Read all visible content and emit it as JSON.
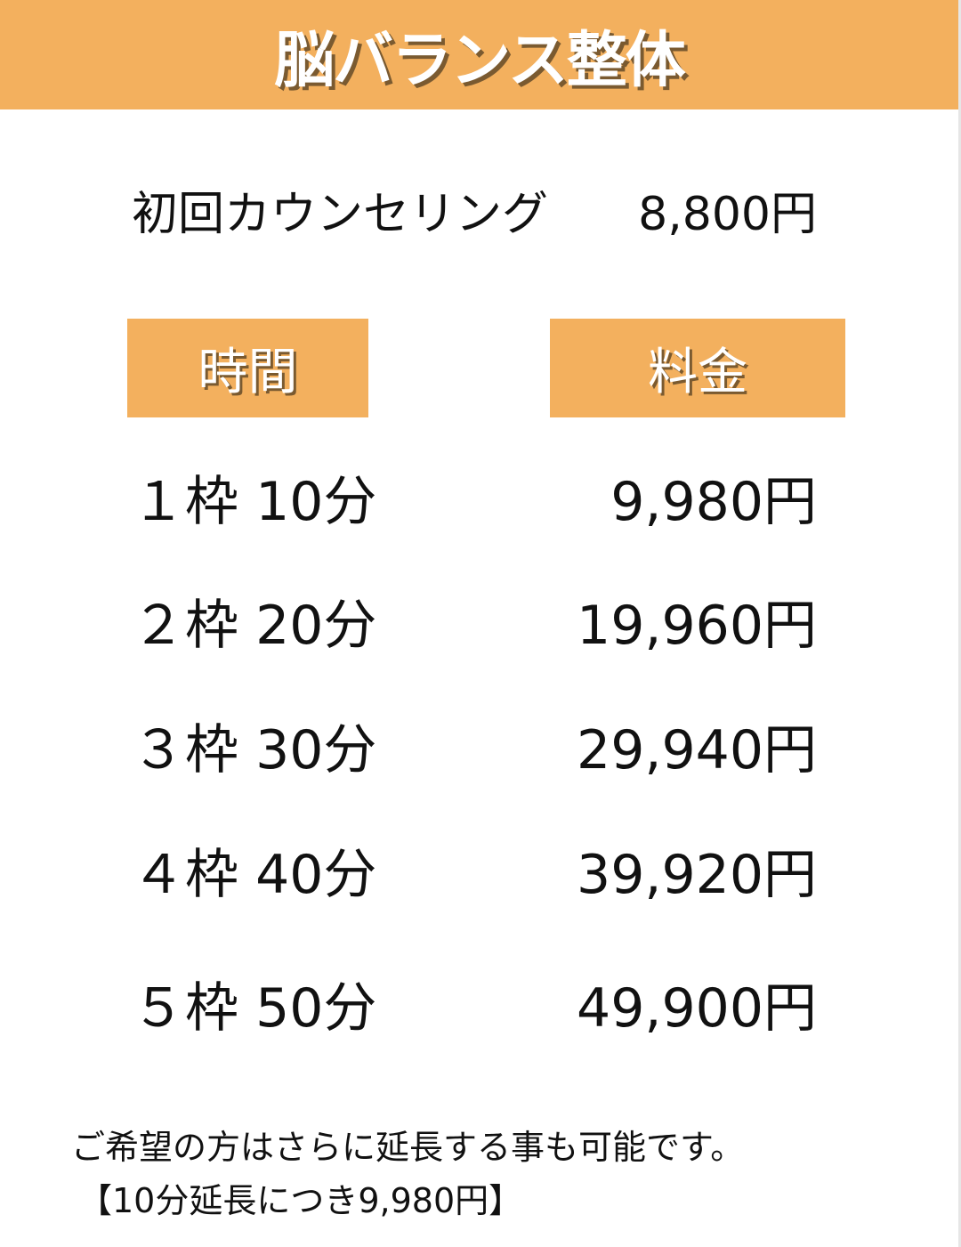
{
  "header": {
    "title": "脳バランス整体"
  },
  "counseling": {
    "label": "初回カウンセリング",
    "price": "8,800円"
  },
  "table": {
    "headers": [
      "時間",
      "料金"
    ],
    "rows": [
      {
        "time": "１枠 10分",
        "price": "9,980円"
      },
      {
        "time": "２枠 20分",
        "price": "19,960円"
      },
      {
        "time": "３枠 30分",
        "price": "29,940円"
      },
      {
        "time": "４枠 40分",
        "price": "39,920円"
      },
      {
        "time": "５枠 50分",
        "price": "49,900円"
      }
    ]
  },
  "notes": {
    "line1": "ご希望の方はさらに延長する事も可能です。",
    "line2": "【10分延長につき9,980円】"
  },
  "colors": {
    "accent": "#F3B05E",
    "text": "#111111"
  }
}
